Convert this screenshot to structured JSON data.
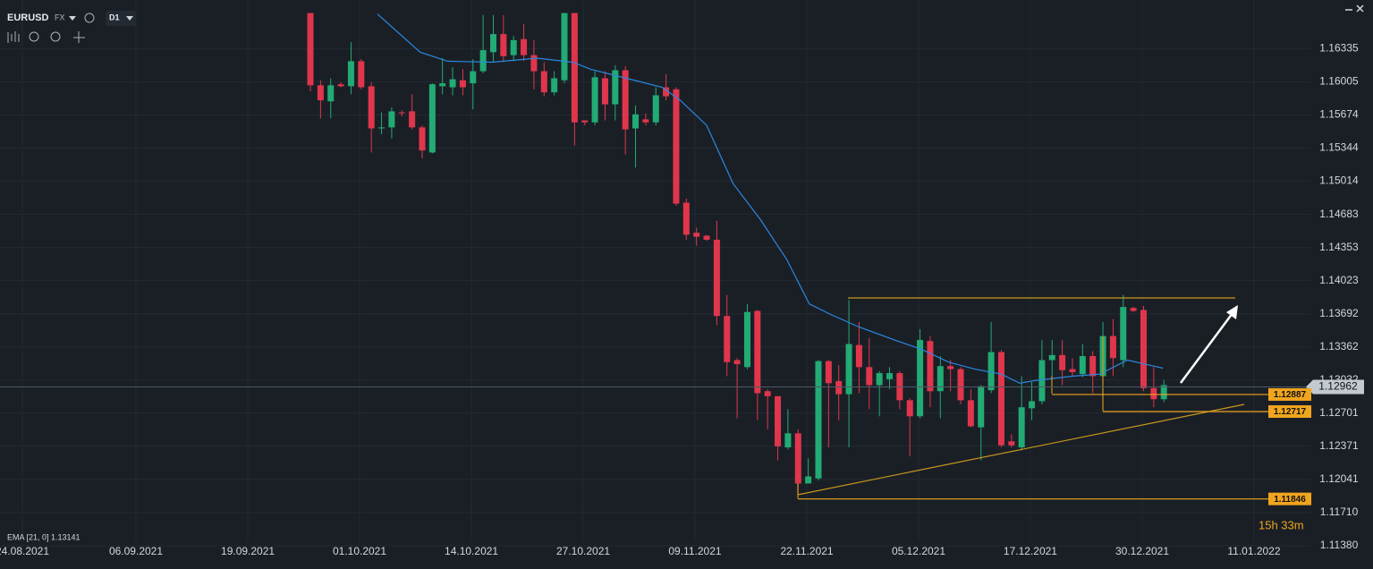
{
  "chart_data": {
    "type": "candlestick",
    "symbol": "EURUSD",
    "market": "FX",
    "timeframe": "D1",
    "ema_label": "EMA [21, 0] 1.13141",
    "countdown": "15h 33m",
    "up_color": "#22ab74",
    "down_color": "#e0364c",
    "ema_color": "#2a88e0",
    "grid": true,
    "xlim": [
      -30.55,
      98.42
    ],
    "xticks": [
      {
        "value": -28.35,
        "label": "24.08.2021"
      },
      {
        "value": -17.17,
        "label": "06.09.2021"
      },
      {
        "value": -6.16,
        "label": "19.09.2021"
      },
      {
        "value": 4.84,
        "label": "01.10.2021"
      },
      {
        "value": 15.85,
        "label": "14.10.2021"
      },
      {
        "value": 26.85,
        "label": "27.10.2021"
      },
      {
        "value": 37.85,
        "label": "09.11.2021"
      },
      {
        "value": 48.86,
        "label": "22.11.2021"
      },
      {
        "value": 59.86,
        "label": "05.12.2021"
      },
      {
        "value": 70.86,
        "label": "17.12.2021"
      },
      {
        "value": 81.87,
        "label": "30.12.2021"
      },
      {
        "value": 92.87,
        "label": "11.01.2022"
      }
    ],
    "ylim": [
      1.1129,
      1.1682
    ],
    "yticks": [
      1.16335,
      1.16005,
      1.15674,
      1.15344,
      1.15014,
      1.14683,
      1.14353,
      1.14023,
      1.13692,
      1.13362,
      1.13032,
      1.12701,
      1.12371,
      1.12041,
      {
        "value": 1.1171,
        "label": "1.11710"
      },
      {
        "value": 1.1138,
        "label": "1.11380"
      }
    ],
    "open": [
      1.1669,
      1.1597,
      1.1581,
      1.1598,
      1.1596,
      1.1621,
      1.1596,
      1.1554,
      1.1555,
      1.157,
      1.1571,
      1.1555,
      1.153,
      1.1596,
      1.1595,
      1.1602,
      1.1599,
      1.1611,
      1.163,
      1.1648,
      1.1627,
      1.1643,
      1.1627,
      1.1611,
      1.159,
      1.1602,
      1.1669,
      1.1562,
      1.156,
      1.1604,
      1.1578,
      1.1612,
      1.1554,
      1.1563,
      1.156,
      1.1595,
      1.1593,
      1.148,
      1.145,
      1.1447,
      1.1443,
      1.1367,
      1.1323,
      1.1316,
      1.1372,
      1.1292,
      1.1287,
      1.1236,
      1.125,
      1.12,
      1.1205,
      1.1322,
      1.1302,
      1.1289,
      1.1338,
      1.1316,
      1.1298,
      1.1304,
      1.131,
      1.1283,
      1.1267,
      1.1342,
      1.1292,
      1.1317,
      1.1314,
      1.1283,
      1.1256,
      1.1293,
      1.1331,
      1.1242,
      1.1236,
      1.1275,
      1.1282,
      1.1323,
      1.1328,
      1.1314,
      1.1309,
      1.1327,
      1.1307,
      1.1347,
      1.1323,
      1.1375,
      1.1373,
      1.1295,
      1.1284
    ],
    "high": [
      1.1669,
      1.1602,
      1.1604,
      1.16,
      1.164,
      1.1623,
      1.16,
      1.157,
      1.1575,
      1.1572,
      1.1588,
      1.1557,
      1.1599,
      1.1624,
      1.1615,
      1.1613,
      1.1623,
      1.1667,
      1.1667,
      1.1667,
      1.1646,
      1.1658,
      1.1642,
      1.162,
      1.1611,
      1.1669,
      1.1669,
      1.1562,
      1.1611,
      1.1611,
      1.1617,
      1.1616,
      1.1577,
      1.1569,
      1.1595,
      1.1608,
      1.1595,
      1.1484,
      1.1455,
      1.1448,
      1.1462,
      1.1388,
      1.1325,
      1.1379,
      1.1373,
      1.1294,
      1.1287,
      1.1274,
      1.1254,
      1.1225,
      1.1323,
      1.1323,
      1.1318,
      1.1383,
      1.1361,
      1.1345,
      1.1312,
      1.1316,
      1.1312,
      1.1285,
      1.1354,
      1.1347,
      1.1327,
      1.1323,
      1.1316,
      1.1294,
      1.1298,
      1.1361,
      1.1333,
      1.1249,
      1.1307,
      1.1301,
      1.1343,
      1.1343,
      1.1343,
      1.1325,
      1.1339,
      1.1332,
      1.1361,
      1.1364,
      1.1388,
      1.1376,
      1.1377,
      1.1316,
      1.1303
    ],
    "low": [
      1.1591,
      1.1564,
      1.1564,
      1.1595,
      1.1588,
      1.1593,
      1.153,
      1.1548,
      1.1544,
      1.1566,
      1.1553,
      1.1524,
      1.1529,
      1.1588,
      1.1587,
      1.1587,
      1.1573,
      1.1609,
      1.162,
      1.162,
      1.1621,
      1.1621,
      1.1593,
      1.1586,
      1.1587,
      1.1599,
      1.1537,
      1.1557,
      1.1557,
      1.1562,
      1.1562,
      1.1528,
      1.1515,
      1.1557,
      1.1557,
      1.1582,
      1.1477,
      1.1443,
      1.1437,
      1.1442,
      1.1358,
      1.1307,
      1.1265,
      1.1314,
      1.1263,
      1.1254,
      1.1223,
      1.1234,
      1.1189,
      1.12,
      1.1203,
      1.1236,
      1.1263,
      1.1236,
      1.129,
      1.1274,
      1.1267,
      1.1294,
      1.1274,
      1.1227,
      1.1265,
      1.1276,
      1.1265,
      1.1292,
      1.1279,
      1.1256,
      1.1223,
      1.129,
      1.1236,
      1.1236,
      1.1233,
      1.1263,
      1.1279,
      1.1307,
      1.1298,
      1.1307,
      1.1306,
      1.129,
      1.1272,
      1.1307,
      1.1316,
      1.1371,
      1.1292,
      1.1276,
      1.1281
    ],
    "close": [
      1.1597,
      1.1582,
      1.1597,
      1.1596,
      1.1621,
      1.1595,
      1.1554,
      1.1555,
      1.1571,
      1.1569,
      1.1555,
      1.1532,
      1.1598,
      1.1599,
      1.1603,
      1.1595,
      1.1611,
      1.1632,
      1.1648,
      1.1626,
      1.1642,
      1.1627,
      1.1611,
      1.159,
      1.1604,
      1.1669,
      1.156,
      1.156,
      1.1605,
      1.1578,
      1.1612,
      1.1553,
      1.1568,
      1.156,
      1.1587,
      1.1586,
      1.1479,
      1.1448,
      1.1446,
      1.1443,
      1.1367,
      1.1321,
      1.1319,
      1.1371,
      1.129,
      1.1287,
      1.1237,
      1.125,
      1.12,
      1.1207,
      1.1322,
      1.13,
      1.1289,
      1.1339,
      1.1316,
      1.1298,
      1.131,
      1.131,
      1.1283,
      1.1267,
      1.1343,
      1.1292,
      1.1317,
      1.1314,
      1.1283,
      1.1257,
      1.1297,
      1.1331,
      1.1238,
      1.1238,
      1.1276,
      1.1282,
      1.1323,
      1.1328,
      1.1313,
      1.1311,
      1.1327,
      1.1307,
      1.1347,
      1.1325,
      1.1376,
      1.1372,
      1.1295,
      1.1284,
      1.1298
    ],
    "ema": {
      "x": [
        6.6,
        10.8,
        13.5,
        17.9,
        22.3,
        25.8,
        27.6,
        31.1,
        34.6,
        36.4,
        39.0,
        41.6,
        44.3,
        46.9,
        49.1,
        51.3,
        54.0,
        57.5,
        60.1,
        62.8,
        65.4,
        68.0,
        69.8,
        71.6,
        75.1,
        77.7,
        80.4,
        83.9
      ],
      "values": [
        1.1668,
        1.163,
        1.1621,
        1.162,
        1.1624,
        1.162,
        1.1613,
        1.1604,
        1.1595,
        1.1582,
        1.1557,
        1.1499,
        1.1463,
        1.1423,
        1.1379,
        1.1368,
        1.1356,
        1.1343,
        1.1334,
        1.1321,
        1.1314,
        1.1309,
        1.13,
        1.1303,
        1.1307,
        1.1309,
        1.1323,
        1.1315
      ]
    },
    "price_lines": [
      1.12887,
      1.12717,
      1.11846
    ],
    "price_line_color": "#f0a51e",
    "last_price": 1.12962
  }
}
